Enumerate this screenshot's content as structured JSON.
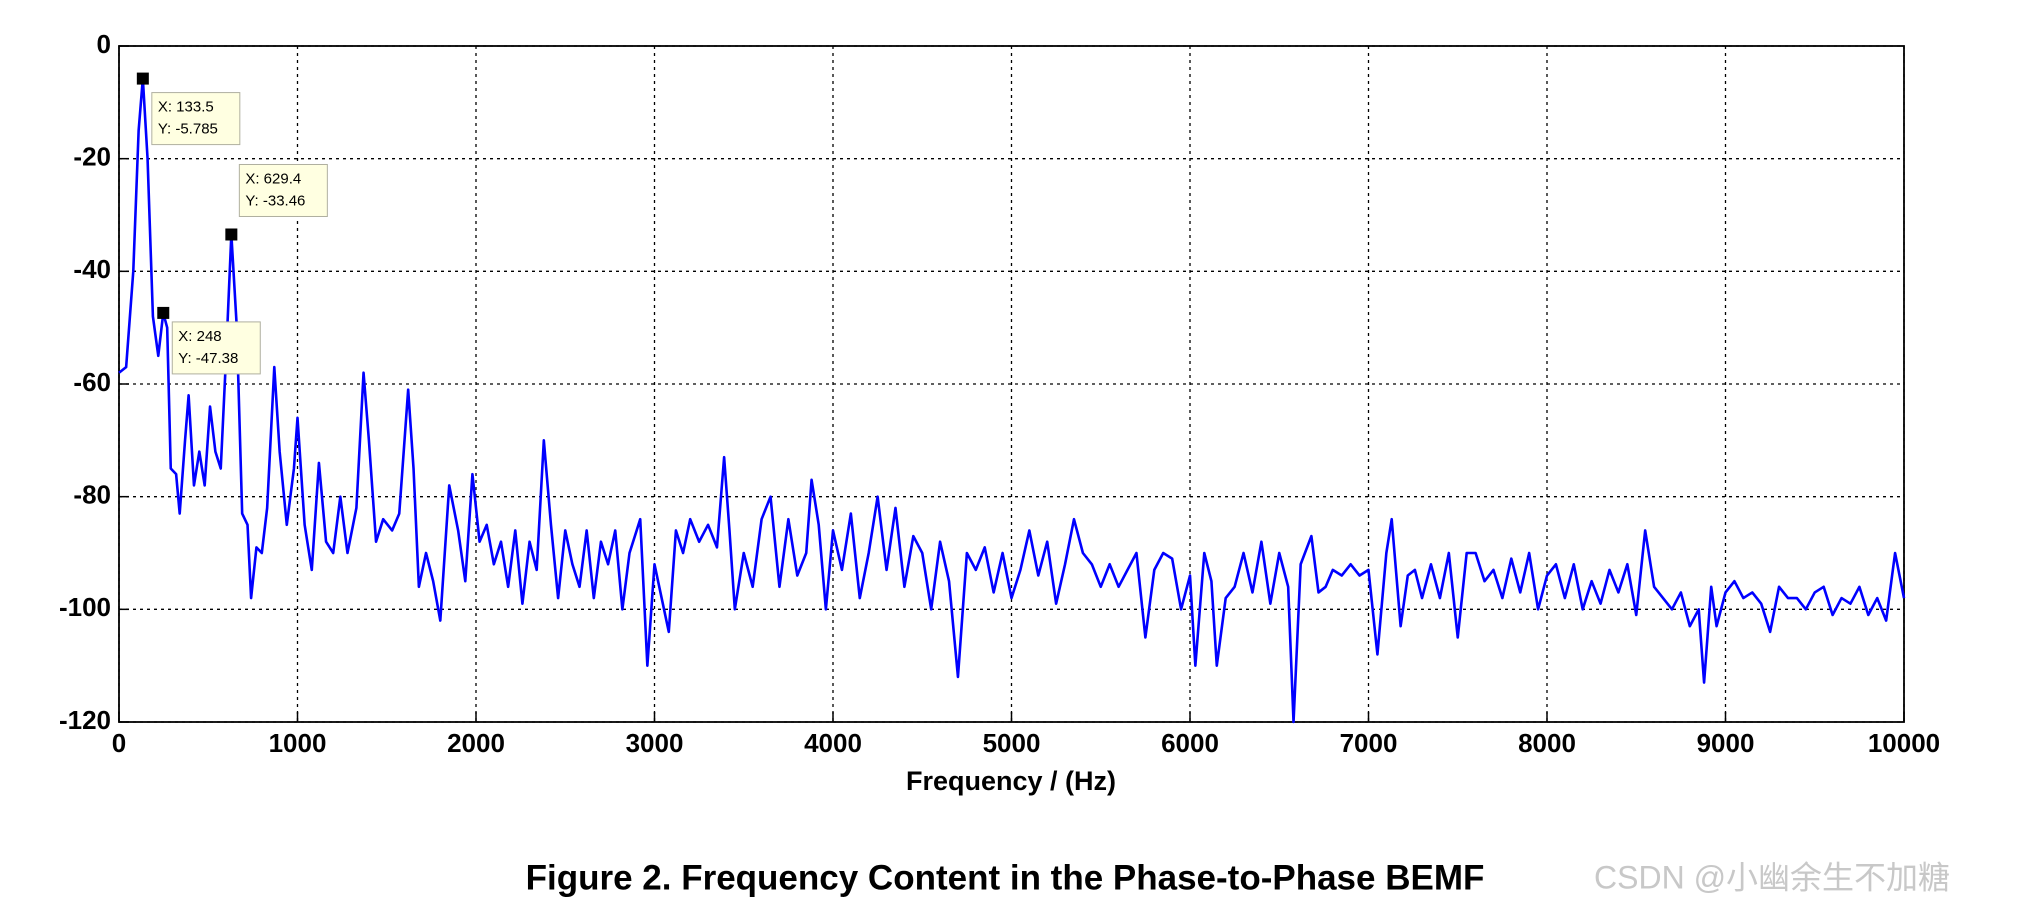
{
  "chart_data": {
    "type": "line",
    "xlabel": "Frequency / (Hz)",
    "caption": "Figure 2. Frequency Content in the Phase-to-Phase BEMF",
    "watermark": "CSDN @小幽余生不加糖",
    "xlim": [
      0,
      10000
    ],
    "ylim": [
      -120,
      0
    ],
    "xticks": [
      0,
      1000,
      2000,
      3000,
      4000,
      5000,
      6000,
      7000,
      8000,
      9000,
      10000
    ],
    "yticks": [
      0,
      -20,
      -40,
      -60,
      -80,
      -100,
      -120
    ],
    "grid": true,
    "series": [
      {
        "color": "#0000ff",
        "x": [
          0,
          40,
          80,
          110,
          133.5,
          160,
          190,
          220,
          248,
          270,
          290,
          320,
          340,
          370,
          390,
          420,
          450,
          480,
          510,
          540,
          570,
          600,
          629.4,
          660,
          690,
          720,
          740,
          770,
          800,
          830,
          870,
          900,
          940,
          980,
          1000,
          1040,
          1080,
          1120,
          1160,
          1200,
          1240,
          1280,
          1330,
          1370,
          1400,
          1440,
          1480,
          1530,
          1570,
          1620,
          1650,
          1680,
          1720,
          1760,
          1800,
          1850,
          1900,
          1940,
          1980,
          2020,
          2060,
          2100,
          2140,
          2180,
          2220,
          2260,
          2300,
          2340,
          2380,
          2420,
          2460,
          2500,
          2540,
          2580,
          2620,
          2660,
          2700,
          2740,
          2780,
          2820,
          2860,
          2920,
          2960,
          3000,
          3040,
          3080,
          3120,
          3160,
          3200,
          3250,
          3300,
          3350,
          3390,
          3420,
          3450,
          3500,
          3550,
          3600,
          3650,
          3700,
          3750,
          3800,
          3850,
          3880,
          3920,
          3960,
          4000,
          4050,
          4100,
          4150,
          4200,
          4250,
          4300,
          4350,
          4400,
          4450,
          4500,
          4550,
          4600,
          4650,
          4700,
          4750,
          4800,
          4850,
          4900,
          4950,
          5000,
          5050,
          5100,
          5150,
          5200,
          5250,
          5300,
          5350,
          5400,
          5450,
          5500,
          5550,
          5600,
          5650,
          5700,
          5750,
          5800,
          5850,
          5900,
          5950,
          6000,
          6030,
          6080,
          6120,
          6150,
          6200,
          6250,
          6300,
          6350,
          6400,
          6450,
          6500,
          6550,
          6580,
          6620,
          6680,
          6720,
          6760,
          6800,
          6850,
          6900,
          6950,
          7000,
          7050,
          7100,
          7130,
          7180,
          7220,
          7260,
          7300,
          7350,
          7400,
          7450,
          7500,
          7550,
          7600,
          7650,
          7700,
          7750,
          7800,
          7850,
          7900,
          7950,
          8000,
          8050,
          8100,
          8150,
          8200,
          8250,
          8300,
          8350,
          8400,
          8450,
          8500,
          8550,
          8600,
          8650,
          8700,
          8750,
          8800,
          8850,
          8880,
          8920,
          8950,
          9000,
          9050,
          9100,
          9150,
          9200,
          9250,
          9300,
          9350,
          9400,
          9450,
          9500,
          9550,
          9600,
          9650,
          9700,
          9750,
          9800,
          9850,
          9900,
          9950,
          10000
        ],
        "values": [
          -58,
          -57,
          -40,
          -15,
          -5.785,
          -20,
          -48,
          -55,
          -47.38,
          -50,
          -75,
          -76,
          -83,
          -70,
          -62,
          -78,
          -72,
          -78,
          -64,
          -72,
          -75,
          -55,
          -33.46,
          -50,
          -83,
          -85,
          -98,
          -89,
          -90,
          -82,
          -57,
          -72,
          -85,
          -75,
          -66,
          -85,
          -93,
          -74,
          -88,
          -90,
          -80,
          -90,
          -82,
          -58,
          -70,
          -88,
          -84,
          -86,
          -83,
          -61,
          -75,
          -96,
          -90,
          -95,
          -102,
          -78,
          -86,
          -95,
          -76,
          -88,
          -85,
          -92,
          -88,
          -96,
          -86,
          -99,
          -88,
          -93,
          -70,
          -85,
          -98,
          -86,
          -92,
          -96,
          -86,
          -98,
          -88,
          -92,
          -86,
          -100,
          -90,
          -84,
          -110,
          -92,
          -98,
          -104,
          -86,
          -90,
          -84,
          -88,
          -85,
          -89,
          -73,
          -86,
          -100,
          -90,
          -96,
          -84,
          -80,
          -96,
          -84,
          -94,
          -90,
          -77,
          -85,
          -100,
          -86,
          -93,
          -83,
          -98,
          -90,
          -80,
          -93,
          -82,
          -96,
          -87,
          -90,
          -100,
          -88,
          -95,
          -112,
          -90,
          -93,
          -89,
          -97,
          -90,
          -98,
          -93,
          -86,
          -94,
          -88,
          -99,
          -92,
          -84,
          -90,
          -92,
          -96,
          -92,
          -96,
          -93,
          -90,
          -105,
          -93,
          -90,
          -91,
          -100,
          -94,
          -110,
          -90,
          -95,
          -110,
          -98,
          -96,
          -90,
          -97,
          -88,
          -99,
          -90,
          -96,
          -120,
          -92,
          -87,
          -97,
          -96,
          -93,
          -94,
          -92,
          -94,
          -93,
          -108,
          -90,
          -84,
          -103,
          -94,
          -93,
          -98,
          -92,
          -98,
          -90,
          -105,
          -90,
          -90,
          -95,
          -93,
          -98,
          -91,
          -97,
          -90,
          -100,
          -94,
          -92,
          -98,
          -92,
          -100,
          -95,
          -99,
          -93,
          -97,
          -92,
          -101,
          -86,
          -96,
          -98,
          -100,
          -97,
          -103,
          -100,
          -113,
          -96,
          -103,
          -97,
          -95,
          -98,
          -97,
          -99,
          -104,
          -96,
          -98,
          -98,
          -100,
          -97,
          -96,
          -101,
          -98,
          -99,
          -96,
          -101,
          -98,
          -102,
          -90,
          -98
        ]
      }
    ],
    "datatips": [
      {
        "x": 133.5,
        "y": -5.785,
        "x_label": "X: 133.5",
        "y_label": "Y: -5.785"
      },
      {
        "x": 629.4,
        "y": -33.46,
        "x_label": "X: 629.4",
        "y_label": "Y: -33.46"
      },
      {
        "x": 248,
        "y": -47.38,
        "x_label": "X: 248",
        "y_label": "Y: -47.38"
      }
    ]
  }
}
